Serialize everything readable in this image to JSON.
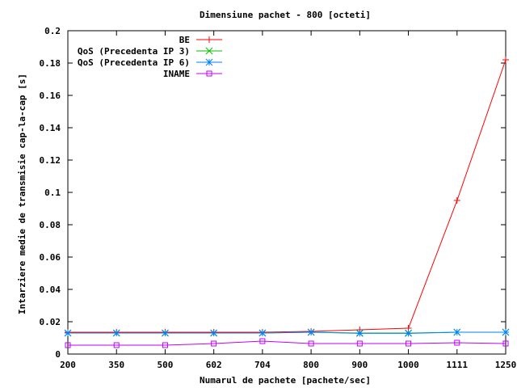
{
  "chart_data": {
    "type": "line",
    "title": "Dimensiune pachet - 800 [octeti]",
    "xlabel": "Numarul de pachete [pachete/sec]",
    "ylabel": "Intarziere medie de transmisie cap-la-cap [s]",
    "categories": [
      "200",
      "350",
      "500",
      "602",
      "704",
      "800",
      "900",
      "1000",
      "1111",
      "1250"
    ],
    "ylim": [
      0,
      0.2
    ],
    "yticks": [
      "0",
      "0.02",
      "0.04",
      "0.06",
      "0.08",
      "0.1",
      "0.12",
      "0.14",
      "0.16",
      "0.18",
      "0.2"
    ],
    "grid": false,
    "legend_position": "top-left",
    "series": [
      {
        "name": "BE",
        "color": "#ff0000",
        "marker": "plus",
        "values": [
          0.0135,
          0.0135,
          0.0135,
          0.0135,
          0.0135,
          0.014,
          0.015,
          0.016,
          0.095,
          0.182
        ]
      },
      {
        "name": "QoS (Precedenta IP 3)",
        "color": "#00c000",
        "marker": "cross",
        "values": [
          0.013,
          0.013,
          0.013,
          0.013,
          0.013,
          0.0135,
          0.013,
          0.013,
          0.0135,
          0.0135
        ]
      },
      {
        "name": "QoS (Precedenta IP 6)",
        "color": "#0080ff",
        "marker": "star",
        "values": [
          0.013,
          0.013,
          0.013,
          0.013,
          0.013,
          0.0135,
          0.0128,
          0.0128,
          0.0135,
          0.0135
        ]
      },
      {
        "name": "INAME",
        "color": "#c000ff",
        "marker": "square",
        "values": [
          0.0055,
          0.0055,
          0.0055,
          0.0065,
          0.008,
          0.0065,
          0.0065,
          0.0065,
          0.007,
          0.0065
        ]
      }
    ]
  }
}
